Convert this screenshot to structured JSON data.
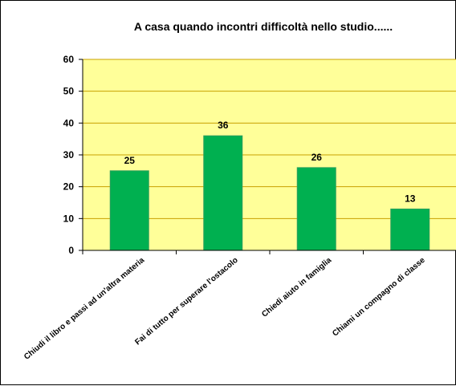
{
  "chart_data": {
    "type": "bar",
    "title": "A casa quando incontri difficoltà nello studio......",
    "xlabel": "",
    "ylabel": "",
    "categories": [
      "Chiudi il libro e passi ad un'altra materia",
      "Fai di tutto per superare l'ostacolo",
      "Chiedi aiuto in famiglia",
      "Chiami un compagno di classe"
    ],
    "values": [
      25,
      36,
      26,
      13
    ],
    "ylim": [
      0,
      60
    ],
    "yticks": [
      0,
      10,
      20,
      30,
      40,
      50,
      60
    ],
    "grid": true,
    "legend": "none",
    "colors": {
      "bar": "#00b050",
      "bar_edge": "#2e9e5e",
      "plot_background": "#ffff99",
      "gridline": "#c8a000",
      "axis": "#000000"
    }
  }
}
